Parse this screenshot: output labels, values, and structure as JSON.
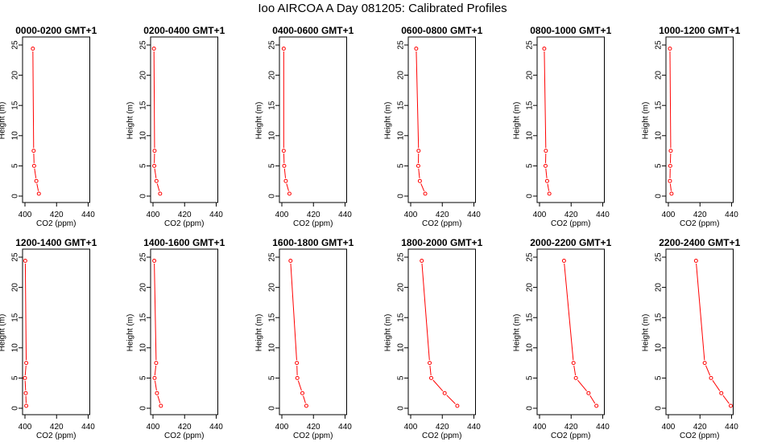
{
  "title": "Ioo AIRCOA A  Day 081205: Calibrated Profiles",
  "chart_data": {
    "type": "line",
    "xlabel": "CO2 (ppm)",
    "ylabel": "Height (m)",
    "xlim": [
      400,
      440
    ],
    "ylim": [
      0,
      25
    ],
    "xticks": [
      400,
      420,
      440
    ],
    "yticks": [
      0,
      5,
      10,
      15,
      20,
      25
    ],
    "grid": false,
    "line_color": "#ff0000",
    "heights": [
      24.4,
      7.5,
      5.0,
      2.5,
      0.4
    ],
    "panels": [
      {
        "title": "0000-0200 GMT+1",
        "co2": [
          405.0,
          405.5,
          405.8,
          407.2,
          408.8
        ]
      },
      {
        "title": "0200-0400 GMT+1",
        "co2": [
          400.6,
          401.0,
          400.8,
          402.2,
          404.5
        ]
      },
      {
        "title": "0400-0600 GMT+1",
        "co2": [
          401.2,
          401.2,
          401.5,
          402.5,
          404.8
        ]
      },
      {
        "title": "0600-0800 GMT+1",
        "co2": [
          403.5,
          405.0,
          404.8,
          405.8,
          409.2
        ]
      },
      {
        "title": "0800-1000 GMT+1",
        "co2": [
          403.0,
          404.0,
          403.8,
          404.8,
          406.2
        ]
      },
      {
        "title": "1000-1200 GMT+1",
        "co2": [
          401.0,
          401.5,
          401.2,
          401.0,
          402.0
        ]
      },
      {
        "title": "1200-1400 GMT+1",
        "co2": [
          400.2,
          400.8,
          400.0,
          400.5,
          400.8
        ]
      },
      {
        "title": "1400-1600 GMT+1",
        "co2": [
          400.8,
          402.0,
          401.0,
          402.5,
          405.0
        ]
      },
      {
        "title": "1600-1800 GMT+1",
        "co2": [
          405.5,
          409.5,
          409.8,
          413.0,
          415.5
        ]
      },
      {
        "title": "1800-2000 GMT+1",
        "co2": [
          407.0,
          412.0,
          413.0,
          421.5,
          429.5
        ]
      },
      {
        "title": "2000-2200 GMT+1",
        "co2": [
          415.5,
          421.5,
          423.0,
          431.0,
          436.0
        ]
      },
      {
        "title": "2200-2400 GMT+1",
        "co2": [
          417.5,
          423.0,
          427.0,
          433.5,
          439.5
        ]
      }
    ]
  }
}
